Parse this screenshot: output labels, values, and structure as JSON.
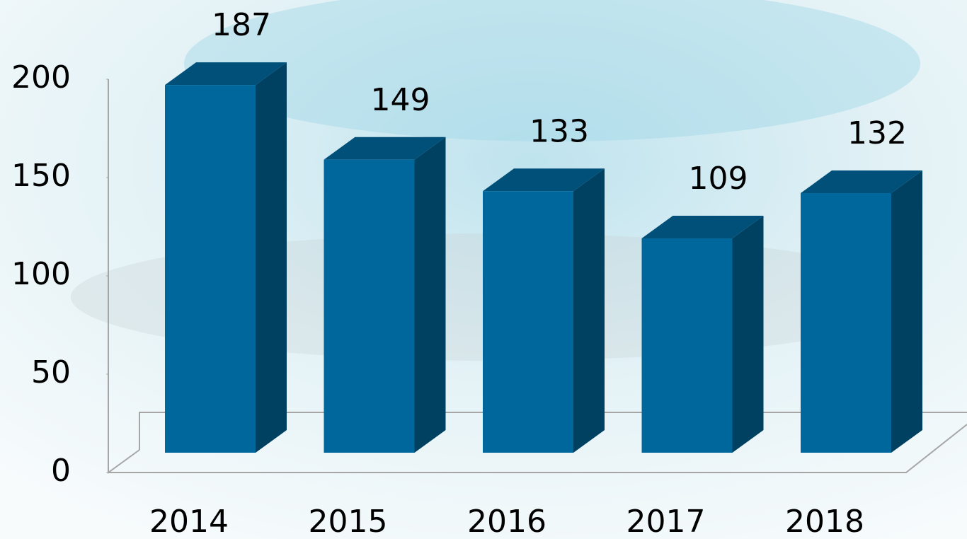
{
  "chart_data": {
    "type": "bar3d",
    "categories": [
      "2014",
      "2015",
      "2016",
      "2017",
      "2018"
    ],
    "values": [
      187,
      149,
      133,
      109,
      132
    ],
    "color": "#00679c",
    "ylim": [
      0,
      200
    ],
    "yticks": [
      0,
      50,
      100,
      150,
      200
    ]
  }
}
